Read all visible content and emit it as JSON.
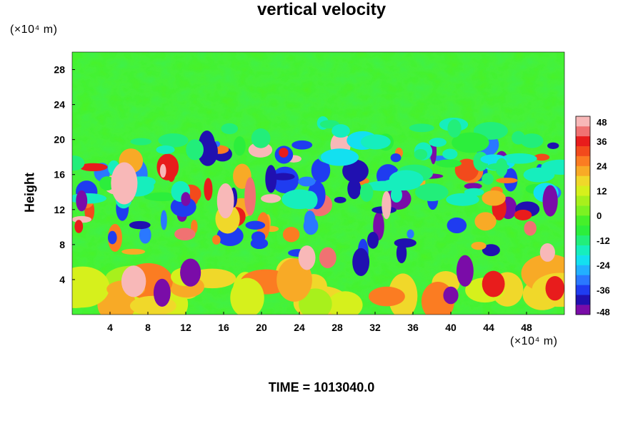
{
  "chart_data": {
    "type": "heatmap",
    "title": "vertical velocity",
    "ylabel": "Height",
    "xlabel": "",
    "y_unit_label": "(×10⁴ m)",
    "x_unit_label": "(×10⁴ m)",
    "xlim": [
      0,
      52
    ],
    "ylim": [
      0,
      30
    ],
    "x_ticks": [
      4,
      8,
      12,
      16,
      20,
      24,
      28,
      32,
      36,
      40,
      44,
      48
    ],
    "y_ticks": [
      4,
      8,
      12,
      16,
      20,
      24,
      28
    ],
    "colorbar": {
      "range": [
        -48,
        48
      ],
      "step": 6,
      "ticks": [
        48,
        36,
        24,
        12,
        0,
        -12,
        -24,
        -36,
        -48
      ],
      "colors": [
        "#7a0ca8",
        "#2010b0",
        "#1f3cf0",
        "#2a78ff",
        "#22b0ff",
        "#13e0f0",
        "#16eebd",
        "#22ee7a",
        "#2cee3c",
        "#46f02a",
        "#7cf222",
        "#a8f01c",
        "#d6f01c",
        "#f0d82a",
        "#f8aa26",
        "#fb7c22",
        "#f24a1c",
        "#e81c1c",
        "#f07272",
        "#f8b8b8"
      ]
    },
    "footer": "TIME = 1013040.0"
  }
}
